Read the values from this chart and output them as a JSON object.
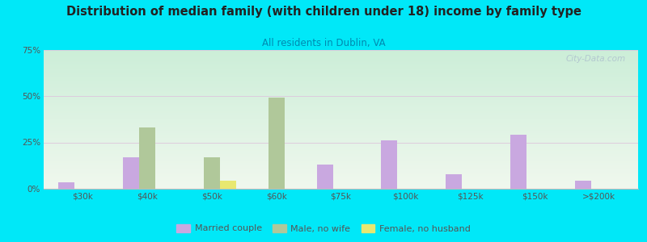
{
  "title": "Distribution of median family (with children under 18) income by family type",
  "subtitle": "All residents in Dublin, VA",
  "categories": [
    "$30k",
    "$40k",
    "$50k",
    "$60k",
    "$75k",
    "$100k",
    "$125k",
    "$150k",
    ">$200k"
  ],
  "married_couple": [
    3.5,
    17.0,
    0,
    0,
    13.0,
    26.0,
    8.0,
    29.0,
    4.5
  ],
  "male_no_wife": [
    0,
    33.0,
    17.0,
    49.0,
    0,
    0,
    0,
    0,
    0
  ],
  "female_no_husband": [
    0,
    0,
    4.5,
    0,
    0,
    0,
    0,
    0,
    0
  ],
  "married_color": "#c9a8e0",
  "male_color": "#b0c89a",
  "female_color": "#e8e870",
  "background_outer": "#00e8f8",
  "title_color": "#222222",
  "subtitle_color": "#008ab0",
  "axis_label_color": "#555555",
  "grid_color": "#ddccdd",
  "ylim": [
    0,
    75
  ],
  "yticks": [
    0,
    25,
    50,
    75
  ],
  "watermark": "City-Data.com",
  "legend_labels": [
    "Married couple",
    "Male, no wife",
    "Female, no husband"
  ],
  "bar_width": 0.25
}
